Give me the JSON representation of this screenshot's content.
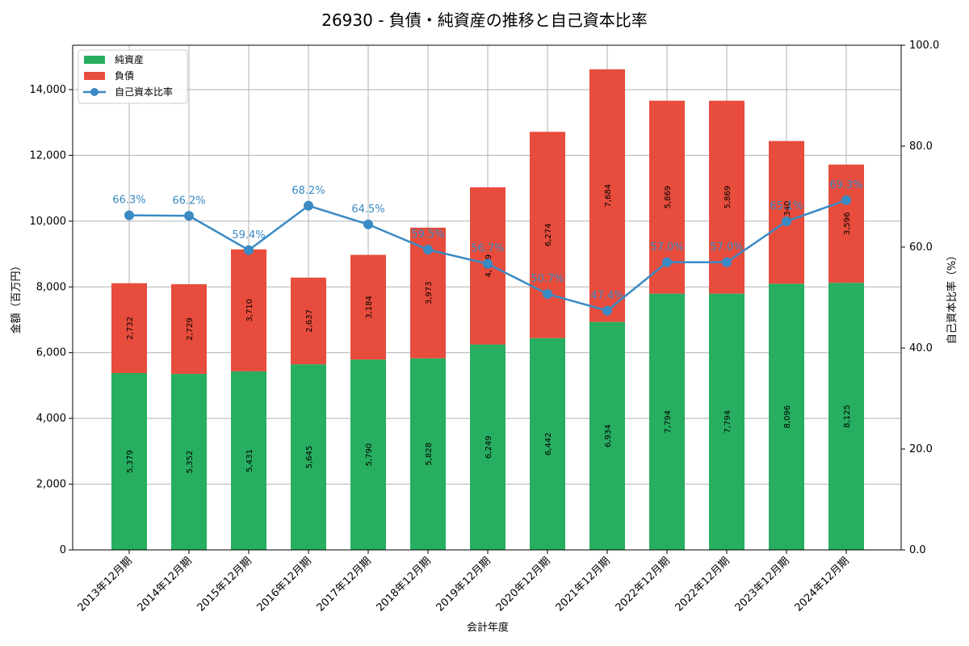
{
  "chart_data": {
    "type": "bar",
    "title": "26930 - 負債・純資産の推移と自己資本比率",
    "xlabel": "会計年度",
    "ylabel": "金額（百万円）",
    "y2label": "自己資本比率（%）",
    "ylim": [
      0,
      15350
    ],
    "y2lim": [
      0,
      100
    ],
    "grid": true,
    "legend_position": "top-left",
    "categories": [
      "2013年12月期",
      "2014年12月期",
      "2015年12月期",
      "2016年12月期",
      "2017年12月期",
      "2018年12月期",
      "2019年12月期",
      "2020年12月期",
      "2021年12月期",
      "2022年12月期",
      "2022年12月期",
      "2023年12月期",
      "2024年12月期"
    ],
    "yticks": [
      "0",
      "2,000",
      "4,000",
      "6,000",
      "8,000",
      "10,000",
      "12,000",
      "14,000"
    ],
    "y2ticks": [
      "0.0",
      "20.0",
      "40.0",
      "60.0",
      "80.0",
      "100.0"
    ],
    "series": [
      {
        "name": "純資産",
        "kind": "bar",
        "color": "#27ae60",
        "values": [
          5379,
          5352,
          5431,
          5645,
          5790,
          5828,
          6249,
          6442,
          6934,
          7794,
          7794,
          8096,
          8125
        ],
        "labels": [
          "5,379",
          "5,352",
          "5,431",
          "5,645",
          "5,790",
          "5,828",
          "6,249",
          "6,442",
          "6,934",
          "7,794",
          "7,794",
          "8,096",
          "8,125"
        ]
      },
      {
        "name": "負債",
        "kind": "bar",
        "color": "#e74c3c",
        "values": [
          2732,
          2729,
          3710,
          2637,
          3184,
          3973,
          4779,
          6274,
          7684,
          5869,
          5869,
          4340,
          3596
        ],
        "labels": [
          "2,732",
          "2,729",
          "3,710",
          "2,637",
          "3,184",
          "3,973",
          "4,779",
          "6,274",
          "7,684",
          "5,869",
          "5,869",
          "4,340",
          "3,596"
        ]
      },
      {
        "name": "自己資本比率",
        "kind": "line",
        "color": "#3a8ac4",
        "values": [
          66.3,
          66.2,
          59.4,
          68.2,
          64.5,
          59.5,
          56.7,
          50.7,
          47.4,
          57.0,
          57.0,
          65.1,
          69.3
        ],
        "labels": [
          "66.3%",
          "66.2%",
          "59.4%",
          "68.2%",
          "64.5%",
          "59.5%",
          "56.7%",
          "50.7%",
          "47.4%",
          "57.0%",
          "57.0%",
          "65.1%",
          "69.3%"
        ]
      }
    ]
  }
}
